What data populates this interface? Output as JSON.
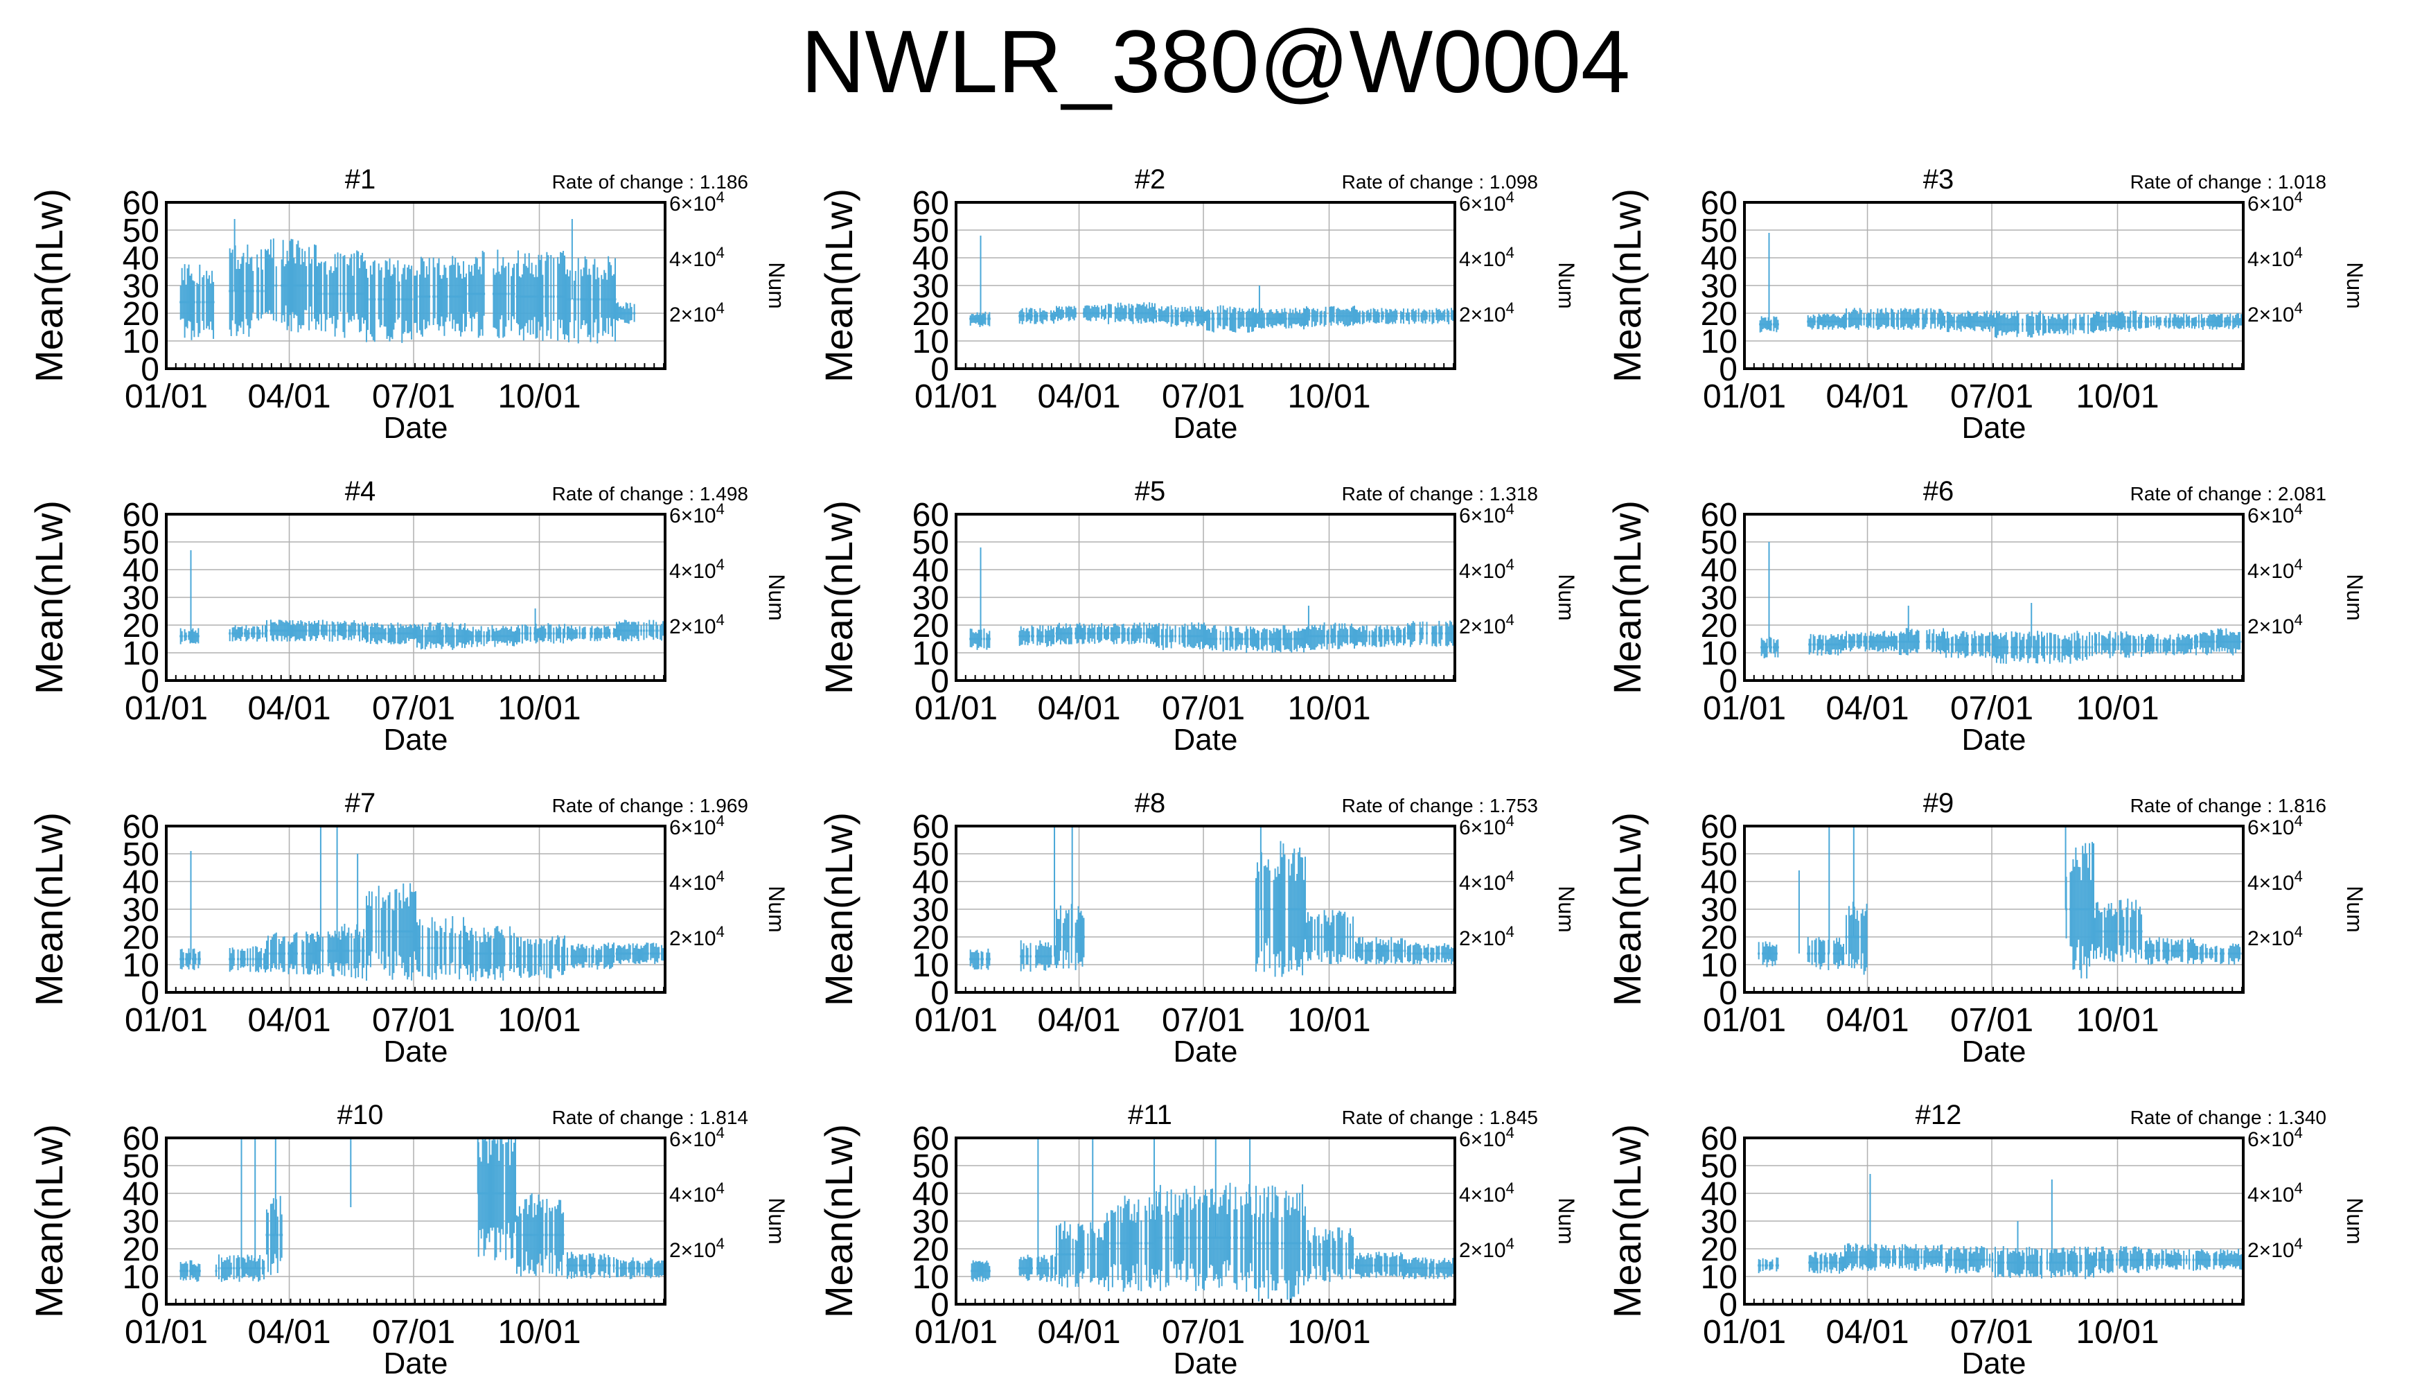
{
  "page": {
    "title": "NWLR_380@W0004"
  },
  "common": {
    "ylabel": "Mean(nLw)",
    "xlabel": "Date",
    "y2label": "Num",
    "rate_prefix": "Rate of change : ",
    "yticks": [
      "0",
      "10",
      "20",
      "30",
      "40",
      "50",
      "60"
    ],
    "xticks": [
      "01/01",
      "04/01",
      "07/01",
      "10/01"
    ],
    "y2ticks": [
      {
        "base": "2×10",
        "exp": "4"
      },
      {
        "base": "4×10",
        "exp": "4"
      },
      {
        "base": "6×10",
        "exp": "4"
      }
    ]
  },
  "colors": {
    "series": "#4aa8d8",
    "grid": "#b0b0b0",
    "axis": "#000000"
  },
  "chart_data": [
    {
      "type": "line",
      "title": "#1",
      "rate": "1.186",
      "ylim": [
        0,
        60
      ],
      "y2lim": [
        0,
        60000
      ],
      "x_axis": "date (day of year)",
      "base": [
        24,
        28,
        30,
        27,
        25,
        26,
        27,
        26,
        25,
        20
      ],
      "spread": [
        14,
        17,
        17,
        16,
        16,
        15,
        16,
        17,
        16,
        4
      ],
      "gaps": [
        [
          0,
          9
        ],
        [
          35,
          45
        ],
        [
          343,
          365
        ]
      ],
      "spikes": [
        [
          50,
          54
        ],
        [
          297,
          54
        ]
      ]
    },
    {
      "type": "line",
      "title": "#2",
      "rate": "1.098",
      "ylim": [
        0,
        60
      ],
      "y2lim": [
        0,
        60000
      ],
      "x_axis": "date (day of year)",
      "base": [
        18,
        19,
        20,
        20,
        19,
        18,
        18,
        19,
        19,
        19
      ],
      "spread": [
        3,
        3,
        3,
        4,
        4,
        5,
        4,
        4,
        3,
        3
      ],
      "gaps": [
        [
          0,
          9
        ],
        [
          25,
          45
        ]
      ],
      "spikes": [
        [
          18,
          48
        ],
        [
          222,
          30
        ]
      ]
    },
    {
      "type": "line",
      "title": "#3",
      "rate": "1.018",
      "ylim": [
        0,
        60
      ],
      "y2lim": [
        0,
        60000
      ],
      "x_axis": "date (day of year)",
      "base": [
        16,
        17,
        18,
        18,
        17,
        16,
        16,
        17,
        17,
        17
      ],
      "spread": [
        3,
        3,
        4,
        4,
        4,
        5,
        4,
        4,
        3,
        3
      ],
      "gaps": [
        [
          0,
          9
        ],
        [
          25,
          45
        ]
      ],
      "spikes": [
        [
          18,
          49
        ]
      ]
    },
    {
      "type": "line",
      "title": "#4",
      "rate": "1.498",
      "ylim": [
        0,
        60
      ],
      "y2lim": [
        0,
        60000
      ],
      "x_axis": "date (day of year)",
      "base": [
        16,
        17,
        18,
        18,
        17,
        16,
        16,
        17,
        17,
        18
      ],
      "spread": [
        3,
        3,
        4,
        4,
        4,
        5,
        4,
        4,
        3,
        4
      ],
      "gaps": [
        [
          0,
          9
        ],
        [
          25,
          45
        ]
      ],
      "spikes": [
        [
          18,
          47
        ],
        [
          270,
          26
        ]
      ]
    },
    {
      "type": "line",
      "title": "#5",
      "rate": "1.318",
      "ylim": [
        0,
        60
      ],
      "y2lim": [
        0,
        60000
      ],
      "x_axis": "date (day of year)",
      "base": [
        15,
        16,
        17,
        17,
        16,
        15,
        15,
        16,
        16,
        17
      ],
      "spread": [
        4,
        4,
        4,
        4,
        5,
        5,
        5,
        5,
        4,
        5
      ],
      "gaps": [
        [
          0,
          9
        ],
        [
          25,
          45
        ]
      ],
      "spikes": [
        [
          18,
          48
        ],
        [
          258,
          27
        ]
      ]
    },
    {
      "type": "line",
      "title": "#6",
      "rate": "2.081",
      "ylim": [
        0,
        60
      ],
      "y2lim": [
        0,
        60000
      ],
      "x_axis": "date (day of year)",
      "base": [
        12,
        13,
        14,
        14,
        13,
        12,
        12,
        13,
        13,
        14
      ],
      "spread": [
        4,
        4,
        4,
        5,
        5,
        6,
        6,
        5,
        4,
        5
      ],
      "gaps": [
        [
          0,
          9
        ],
        [
          25,
          45
        ]
      ],
      "spikes": [
        [
          18,
          50
        ],
        [
          120,
          27
        ],
        [
          210,
          28
        ]
      ]
    },
    {
      "type": "line",
      "title": "#7",
      "rate": "1.969",
      "ylim": [
        0,
        60
      ],
      "y2lim": [
        0,
        60000
      ],
      "x_axis": "date (day of year)",
      "base": [
        12,
        12,
        14,
        15,
        22,
        16,
        14,
        13,
        13,
        14
      ],
      "spread": [
        4,
        5,
        8,
        10,
        18,
        12,
        10,
        8,
        5,
        4
      ],
      "gaps": [
        [
          0,
          9
        ],
        [
          25,
          45
        ]
      ],
      "spikes": [
        [
          18,
          51
        ],
        [
          113,
          60
        ],
        [
          125,
          60
        ],
        [
          140,
          50
        ]
      ]
    },
    {
      "type": "line",
      "title": "#8",
      "rate": "1.753",
      "ylim": [
        0,
        60
      ],
      "y2lim": [
        0,
        60000
      ],
      "x_axis": "date (day of year)",
      "base": [
        12,
        13,
        20,
        30,
        40,
        40,
        30,
        20,
        15,
        14
      ],
      "spread": [
        4,
        6,
        12,
        20,
        20,
        20,
        25,
        10,
        5,
        4
      ],
      "gaps": [
        [
          0,
          9
        ],
        [
          25,
          45
        ],
        [
          95,
          218
        ]
      ],
      "spikes": [
        [
          72,
          60
        ],
        [
          85,
          60
        ],
        [
          223,
          60
        ]
      ]
    },
    {
      "type": "line",
      "title": "#9",
      "rate": "1.816",
      "ylim": [
        0,
        60
      ],
      "y2lim": [
        0,
        60000
      ],
      "x_axis": "date (day of year)",
      "base": [
        14,
        14,
        20,
        30,
        40,
        40,
        30,
        22,
        15,
        14
      ],
      "spread": [
        5,
        6,
        14,
        25,
        25,
        25,
        25,
        12,
        5,
        4
      ],
      "gaps": [
        [
          0,
          9
        ],
        [
          25,
          45
        ],
        [
          90,
          233
        ]
      ],
      "spikes": [
        [
          40,
          44
        ],
        [
          62,
          60
        ],
        [
          80,
          60
        ],
        [
          235,
          60
        ]
      ]
    },
    {
      "type": "line",
      "title": "#10",
      "rate": "1.814",
      "ylim": [
        0,
        60
      ],
      "y2lim": [
        0,
        60000
      ],
      "x_axis": "date (day of year)",
      "base": [
        12,
        13,
        25,
        35,
        40,
        40,
        40,
        25,
        14,
        13
      ],
      "spread": [
        4,
        5,
        15,
        25,
        25,
        25,
        25,
        15,
        5,
        4
      ],
      "gaps": [
        [
          0,
          9
        ],
        [
          25,
          35
        ],
        [
          85,
          227
        ]
      ],
      "spikes": [
        [
          55,
          60
        ],
        [
          65,
          60
        ],
        [
          80,
          60
        ],
        [
          135,
          60
        ],
        [
          228,
          60
        ]
      ]
    },
    {
      "type": "line",
      "title": "#11",
      "rate": "1.845",
      "ylim": [
        0,
        60
      ],
      "y2lim": [
        0,
        60000
      ],
      "x_axis": "date (day of year)",
      "base": [
        12,
        13,
        18,
        22,
        24,
        24,
        22,
        18,
        14,
        13
      ],
      "spread": [
        4,
        5,
        12,
        18,
        20,
        20,
        22,
        10,
        5,
        4
      ],
      "gaps": [
        [
          0,
          9
        ],
        [
          25,
          45
        ]
      ],
      "spikes": [
        [
          60,
          60
        ],
        [
          100,
          60
        ],
        [
          145,
          60
        ],
        [
          190,
          60
        ],
        [
          215,
          60
        ]
      ]
    },
    {
      "type": "line",
      "title": "#12",
      "rate": "1.340",
      "ylim": [
        0,
        60
      ],
      "y2lim": [
        0,
        60000
      ],
      "x_axis": "date (day of year)",
      "base": [
        14,
        15,
        17,
        17,
        16,
        15,
        15,
        16,
        16,
        16
      ],
      "spread": [
        3,
        4,
        5,
        5,
        5,
        6,
        6,
        5,
        4,
        4
      ],
      "gaps": [
        [
          0,
          9
        ],
        [
          25,
          45
        ]
      ],
      "spikes": [
        [
          92,
          47
        ],
        [
          200,
          30
        ],
        [
          225,
          45
        ]
      ]
    }
  ]
}
